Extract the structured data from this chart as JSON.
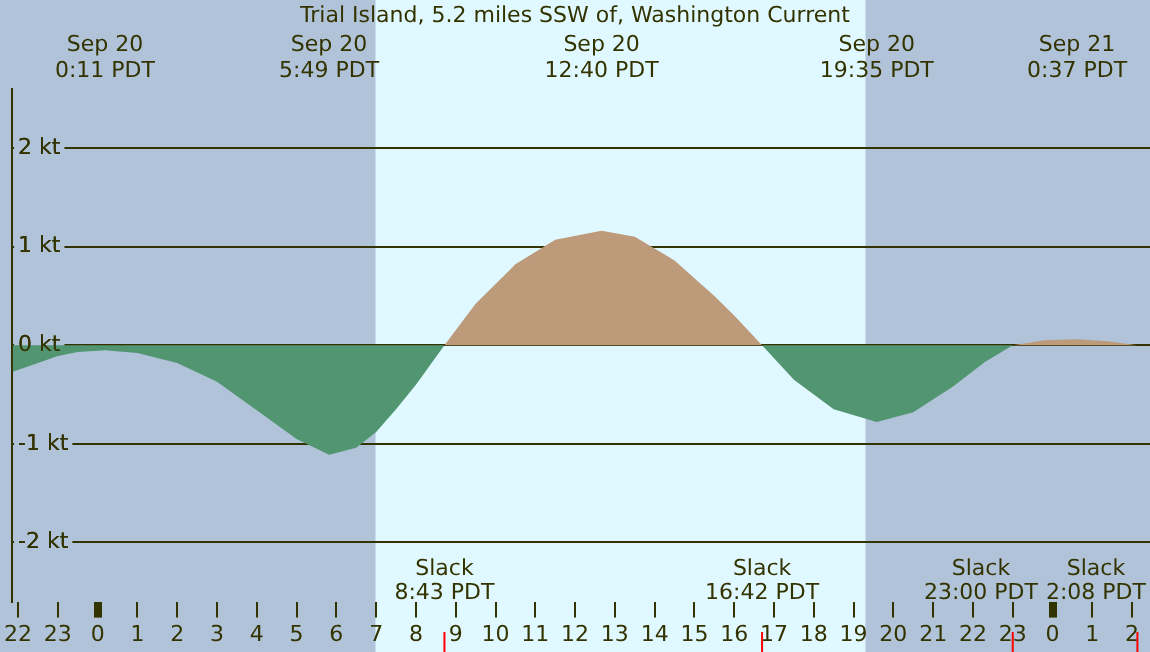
{
  "chart_data": {
    "type": "area",
    "title": "Trial Island, 5.2 miles SSW of, Washington Current",
    "x": [
      "--09-19T21:52",
      "--09-19T22:30",
      "--09-19T23:00",
      "--09-19T23:30",
      "--09-20T00:11",
      "--09-20T01:00",
      "--09-20T02:00",
      "--09-20T03:00",
      "--09-20T04:00",
      "--09-20T05:00",
      "--09-20T05:49",
      "--09-20T06:30",
      "--09-20T07:00",
      "--09-20T07:30",
      "--09-20T08:00",
      "--09-20T08:43",
      "--09-20T09:30",
      "--09-20T10:30",
      "--09-20T11:30",
      "--09-20T12:40",
      "--09-20T13:30",
      "--09-20T14:30",
      "--09-20T15:30",
      "--09-20T16:00",
      "--09-20T16:42",
      "--09-20T17:30",
      "--09-20T18:30",
      "--09-20T19:35",
      "--09-20T20:30",
      "--09-20T21:30",
      "--09-20T22:18",
      "--09-20T23:00",
      "--09-20T23:48",
      "--09-21T00:37",
      "--09-21T01:24",
      "--09-21T02:08"
    ],
    "series": [
      {
        "color": "#bc9a7a",
        "values": [
          null,
          null,
          null,
          null,
          null,
          null,
          null,
          null,
          null,
          null,
          null,
          null,
          null,
          null,
          null,
          0,
          0.42,
          0.82,
          1.07,
          1.16,
          1.1,
          0.86,
          0.5,
          0.3,
          0,
          null,
          null,
          null,
          null,
          null,
          null,
          0,
          0.05,
          0.06,
          0.04,
          0
        ]
      },
      {
        "color": "#519571",
        "values": [
          -0.27,
          -0.18,
          -0.11,
          -0.07,
          -0.05,
          -0.08,
          -0.18,
          -0.37,
          -0.66,
          -0.95,
          -1.11,
          -1.04,
          -0.88,
          -0.65,
          -0.4,
          0,
          null,
          null,
          null,
          null,
          null,
          null,
          null,
          null,
          0,
          -0.35,
          -0.65,
          -0.78,
          -0.68,
          -0.42,
          -0.17,
          0,
          null,
          null,
          null,
          null
        ]
      }
    ],
    "xlim": [
      "--09-19T21:51",
      "--09-21T02:27"
    ],
    "xticks": [
      {
        "value": "--09-19T22:00",
        "label": "22"
      },
      {
        "value": "--09-19T23:00",
        "label": "23"
      },
      {
        "value": "--09-20T00:00",
        "label": "0"
      },
      {
        "value": "--09-20T01:00",
        "label": "1"
      },
      {
        "value": "--09-20T02:00",
        "label": "2"
      },
      {
        "value": "--09-20T03:00",
        "label": "3"
      },
      {
        "value": "--09-20T04:00",
        "label": "4"
      },
      {
        "value": "--09-20T05:00",
        "label": "5"
      },
      {
        "value": "--09-20T06:00",
        "label": "6"
      },
      {
        "value": "--09-20T07:00",
        "label": "7"
      },
      {
        "value": "--09-20T08:00",
        "label": "8"
      },
      {
        "value": "--09-20T09:00",
        "label": "9"
      },
      {
        "value": "--09-20T10:00",
        "label": "10"
      },
      {
        "value": "--09-20T11:00",
        "label": "11"
      },
      {
        "value": "--09-20T12:00",
        "label": "12"
      },
      {
        "value": "--09-20T13:00",
        "label": "13"
      },
      {
        "value": "--09-20T14:00",
        "label": "14"
      },
      {
        "value": "--09-20T15:00",
        "label": "15"
      },
      {
        "value": "--09-20T16:00",
        "label": "16"
      },
      {
        "value": "--09-20T17:00",
        "label": "17"
      },
      {
        "value": "--09-20T18:00",
        "label": "18"
      },
      {
        "value": "--09-20T19:00",
        "label": "19"
      },
      {
        "value": "--09-20T20:00",
        "label": "20"
      },
      {
        "value": "--09-20T21:00",
        "label": "21"
      },
      {
        "value": "--09-20T22:00",
        "label": "22"
      },
      {
        "value": "--09-20T23:00",
        "label": "23"
      },
      {
        "value": "--09-21T00:00",
        "label": "0"
      },
      {
        "value": "--09-21T01:00",
        "label": "1"
      },
      {
        "value": "--09-21T02:00",
        "label": "2"
      }
    ],
    "x2lim": [
      "--09-19T21:51",
      "--09-21T02:27"
    ],
    "x2ticks": [
      {
        "value": "--09-20T00:11",
        "label": "Sep 20\n0:11 PDT"
      },
      {
        "value": "--09-20T05:49",
        "label": "Sep 20\n5:49 PDT"
      },
      {
        "value": "--09-20T12:40",
        "label": "Sep 20\n12:40 PDT"
      },
      {
        "value": "--09-20T19:35",
        "label": "Sep 20\n19:35 PDT"
      },
      {
        "value": "--09-21T00:37",
        "label": "Sep 21\n0:37 PDT"
      }
    ],
    "ylim": [
      -2.6,
      2.6
    ],
    "yticks": [
      {
        "value": -2,
        "label": "-2 kt"
      },
      {
        "value": -1,
        "label": "-1 kt"
      },
      {
        "value": 0,
        "label": "0 kt"
      },
      {
        "value": 1,
        "label": "1 kt"
      },
      {
        "value": 2,
        "label": "2 kt"
      }
    ],
    "grid": "y",
    "bands": [
      {
        "axis": "x",
        "from": "--09-19T21:51",
        "to": "--09-20T06:59",
        "color": "#b0c3d8"
      },
      {
        "axis": "x",
        "from": "--09-20T19:18",
        "to": "--09-21T02:27",
        "color": "#b0c3d8"
      }
    ],
    "ref_lines": [
      {
        "axis": "x",
        "value": "--09-20T08:43",
        "label": "Slack\n8:43 PDT",
        "color": "#ff0000"
      },
      {
        "axis": "x",
        "value": "--09-20T16:42",
        "label": "Slack\n16:42 PDT",
        "color": "#ff0000"
      },
      {
        "axis": "x",
        "value": "--09-20T23:00",
        "label": "Slack\n23:00 PDT",
        "color": "#ff0000"
      },
      {
        "axis": "x",
        "value": "--09-21T02:08",
        "label": "Slack\n2:08 PDT",
        "color": "#ff0000"
      }
    ]
  }
}
